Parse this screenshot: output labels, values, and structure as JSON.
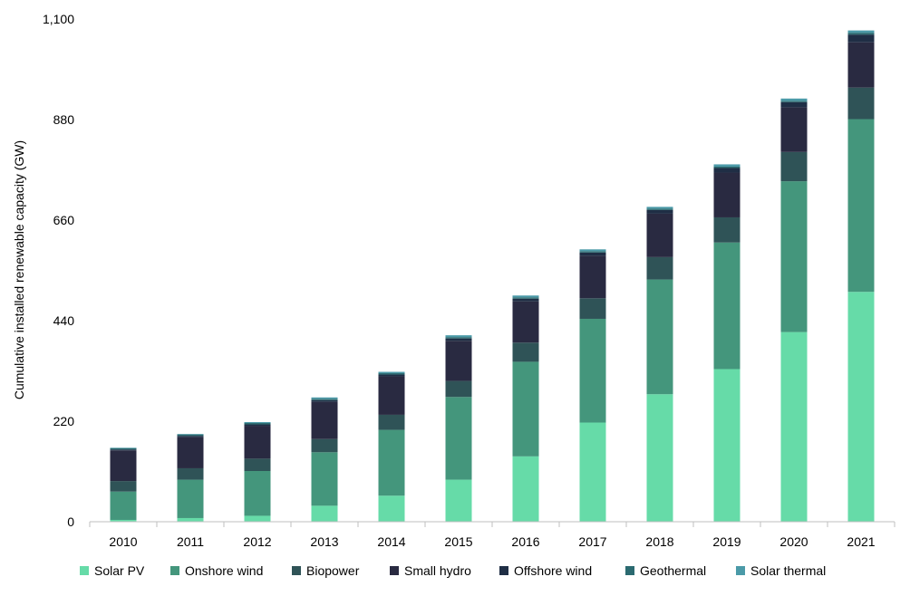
{
  "chart_data": {
    "type": "bar",
    "stacked": true,
    "title": "",
    "xlabel": "",
    "ylabel": "Cumulative installed renewable capacity (GW)",
    "ylim": [
      0,
      1100
    ],
    "yticks": [
      "0",
      "220",
      "440",
      "660",
      "880",
      "1,100"
    ],
    "ytick_values": [
      0,
      220,
      440,
      660,
      880,
      1100
    ],
    "grid": false,
    "legend_position": "bottom",
    "categories": [
      "2010",
      "2011",
      "2012",
      "2013",
      "2014",
      "2015",
      "2016",
      "2017",
      "2018",
      "2019",
      "2020",
      "2021"
    ],
    "series": [
      {
        "name": "Solar PV",
        "color": "#66dba8",
        "values": [
          4,
          8,
          13,
          35,
          57,
          92,
          143,
          217,
          279,
          334,
          415,
          503
        ]
      },
      {
        "name": "Onshore wind",
        "color": "#44967c",
        "values": [
          62,
          84,
          98,
          117,
          144,
          181,
          207,
          227,
          251,
          277,
          330,
          378
        ]
      },
      {
        "name": "Biopower",
        "color": "#2f5357",
        "values": [
          23,
          25,
          27,
          29,
          33,
          35,
          42,
          45,
          49,
          55,
          64,
          69
        ]
      },
      {
        "name": "Small hydro",
        "color": "#292a41",
        "values": [
          67,
          68,
          72,
          81,
          84,
          88,
          90,
          93,
          95,
          98,
          98,
          99
        ]
      },
      {
        "name": "Offshore wind",
        "color": "#1f2e45",
        "values": [
          2,
          3,
          3,
          4,
          4,
          5,
          6,
          7,
          8,
          10,
          11,
          17
        ]
      },
      {
        "name": "Geothermal",
        "color": "#2b6a70",
        "values": [
          3,
          3,
          3,
          3,
          3,
          3,
          3,
          3,
          3,
          3,
          3,
          4
        ]
      },
      {
        "name": "Solar thermal",
        "color": "#4b9aa8",
        "values": [
          1,
          1,
          2,
          3,
          3,
          4,
          4,
          4,
          4,
          5,
          5,
          5
        ]
      }
    ]
  }
}
